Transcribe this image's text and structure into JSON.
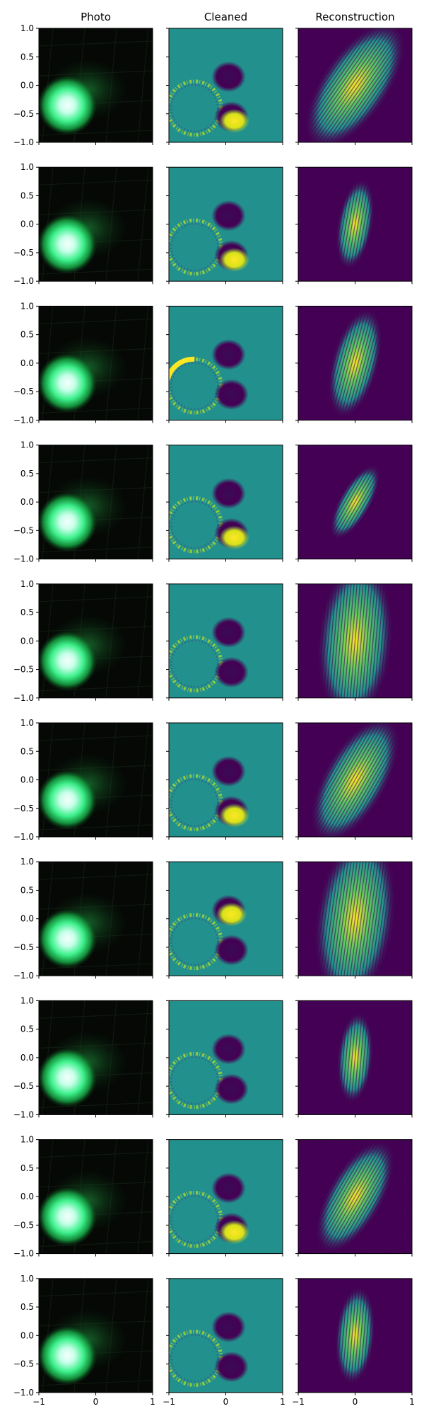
{
  "chart_data": {
    "type": "heatmap",
    "columns": [
      "Photo",
      "Cleaned",
      "Reconstruction"
    ],
    "rows": 10,
    "xlim": [
      -1,
      1
    ],
    "ylim": [
      -1,
      1
    ],
    "x_ticks": [
      -1,
      0,
      1
    ],
    "y_ticks": [
      1.0,
      0.5,
      0.0,
      -0.5,
      -1.0
    ],
    "x_tick_labels": [
      "−1",
      "0",
      "1"
    ],
    "y_tick_labels": [
      "1.0",
      "0.5",
      "0.0",
      "−0.5",
      "−1.0"
    ],
    "grid": false,
    "legend": "none",
    "photo": {
      "spot_center": [
        -0.5,
        -0.35
      ],
      "spot_radius": 0.42,
      "colors": {
        "core": "#e8fff6",
        "mid": "#3cf08a",
        "edge": "#0f5a24",
        "bg": "#050805"
      }
    },
    "cleaned": {
      "ring_center": [
        -0.55,
        -0.4
      ],
      "ring_radius": 0.47,
      "blob_centers": [
        [
          0.05,
          0.15
        ],
        [
          0.1,
          -0.55
        ]
      ],
      "colors": {
        "bg": "#22908c",
        "low": "#440154",
        "high": "#fde725"
      },
      "bright_blob_per_row": [
        "lower",
        "lower",
        "ring",
        "lower",
        "none",
        "lower",
        "upper",
        "none",
        "lower",
        "none"
      ]
    },
    "reconstruction": {
      "fringe_angle_deg": [
        35,
        10,
        15,
        30,
        5,
        30,
        8,
        5,
        30,
        5
      ],
      "spread": [
        0.85,
        0.45,
        0.6,
        0.4,
        0.95,
        0.8,
        1.0,
        0.45,
        0.7,
        0.5
      ],
      "colors": {
        "bg": "#440154",
        "mid": "#21918c",
        "high": "#fde725"
      }
    }
  }
}
